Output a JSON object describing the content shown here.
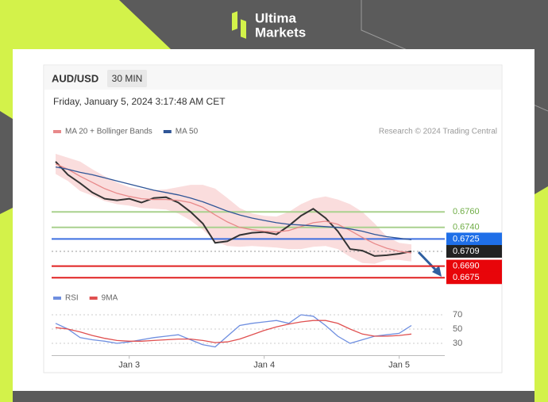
{
  "brand": [
    "Ultima",
    "Markets"
  ],
  "chart_data": [
    {
      "type": "line",
      "title": "AUD/USD",
      "subtitle": "30 MIN",
      "timestamp": "Friday, January 5, 2024 3:17:48 AM CET",
      "credit": "Research © 2024 Trading Central",
      "ylim": [
        0.6665,
        0.6835
      ],
      "series": [
        {
          "name": null,
          "color": "#333333",
          "values": [
            0.6825,
            0.6808,
            0.6797,
            0.6785,
            0.6777,
            0.6775,
            0.6777,
            0.6772,
            0.6778,
            0.6779,
            0.6772,
            0.676,
            0.6745,
            0.672,
            0.6722,
            0.673,
            0.6733,
            0.6734,
            0.6731,
            0.6742,
            0.6755,
            0.6764,
            0.6752,
            0.6735,
            0.6712,
            0.671,
            0.6703,
            0.6704,
            0.6706,
            0.6709
          ]
        },
        {
          "name": "MA 20 + Bollinger Bands",
          "color": "#e8898a",
          "band_color": "#f9d4d4",
          "values": [
            0.6822,
            0.6815,
            0.6806,
            0.6798,
            0.679,
            0.6784,
            0.678,
            0.6777,
            0.6776,
            0.6776,
            0.6775,
            0.6772,
            0.6766,
            0.6756,
            0.6747,
            0.674,
            0.6737,
            0.6735,
            0.6734,
            0.6736,
            0.6741,
            0.6746,
            0.6748,
            0.6744,
            0.6736,
            0.6727,
            0.6719,
            0.6713,
            0.6709,
            0.6707
          ],
          "upper": [
            0.6835,
            0.683,
            0.6825,
            0.6815,
            0.6806,
            0.6798,
            0.6792,
            0.6789,
            0.6788,
            0.6789,
            0.6792,
            0.6795,
            0.6795,
            0.679,
            0.6778,
            0.6765,
            0.6758,
            0.6755,
            0.6754,
            0.676,
            0.677,
            0.6777,
            0.678,
            0.6776,
            0.677,
            0.676,
            0.6745,
            0.6728,
            0.672,
            0.6718
          ],
          "lower": [
            0.6809,
            0.68,
            0.6787,
            0.6781,
            0.6774,
            0.677,
            0.6768,
            0.6765,
            0.6764,
            0.6763,
            0.6758,
            0.6749,
            0.6737,
            0.6722,
            0.6716,
            0.6715,
            0.6716,
            0.6715,
            0.6714,
            0.6712,
            0.6712,
            0.6715,
            0.6716,
            0.6712,
            0.6702,
            0.6694,
            0.6693,
            0.6698,
            0.6698,
            0.6696
          ]
        },
        {
          "name": "MA 50",
          "color": "#2f5597",
          "values": [
            0.6818,
            0.6815,
            0.6811,
            0.6808,
            0.6804,
            0.68,
            0.6796,
            0.6792,
            0.6788,
            0.6785,
            0.6782,
            0.6778,
            0.6773,
            0.6767,
            0.6761,
            0.6756,
            0.6752,
            0.6749,
            0.6746,
            0.6744,
            0.6743,
            0.6742,
            0.6741,
            0.674,
            0.6738,
            0.6735,
            0.6731,
            0.6728,
            0.6726,
            0.6724
          ]
        }
      ],
      "levels": [
        {
          "value": 0.676,
          "label": "0.6760",
          "color": "#a9d18e",
          "text_color": "#70ad47",
          "box": false,
          "style": "solid"
        },
        {
          "value": 0.674,
          "label": "0.6740",
          "color": "#a9d18e",
          "text_color": "#70ad47",
          "box": false,
          "style": "solid"
        },
        {
          "value": 0.6725,
          "label": "0.6725",
          "color": "#3d6fe0",
          "text_color": "#ffffff",
          "box": true,
          "box_color": "#1f6fe8",
          "style": "solid"
        },
        {
          "value": 0.6709,
          "label": "0.6709",
          "color": "#999999",
          "text_color": "#ffffff",
          "box": true,
          "box_color": "#222222",
          "style": "dotted"
        },
        {
          "value": 0.669,
          "label": "0.6690",
          "color": "#e02020",
          "text_color": "#ffffff",
          "box": true,
          "box_color": "#e8050a",
          "style": "solid"
        },
        {
          "value": 0.6675,
          "label": "0.6675",
          "color": "#e02020",
          "text_color": "#ffffff",
          "box": true,
          "box_color": "#e8050a",
          "style": "solid"
        }
      ]
    },
    {
      "type": "line",
      "categories": [
        null,
        null,
        null,
        null,
        null,
        null,
        "Jan 3",
        null,
        null,
        null,
        null,
        null,
        null,
        null,
        null,
        null,
        null,
        "Jan 4",
        null,
        null,
        null,
        null,
        null,
        null,
        null,
        null,
        null,
        null,
        "Jan 5",
        null
      ],
      "ylim": [
        15,
        80
      ],
      "yticks": [
        30,
        50,
        70
      ],
      "series": [
        {
          "name": "RSI",
          "color": "#6f8fe0",
          "values": [
            58,
            50,
            38,
            35,
            33,
            30,
            32,
            35,
            38,
            40,
            42,
            35,
            28,
            25,
            40,
            55,
            58,
            60,
            62,
            58,
            70,
            68,
            55,
            40,
            30,
            35,
            40,
            42,
            44,
            55
          ]
        },
        {
          "name": "9MA",
          "color": "#e05050",
          "values": [
            52,
            50,
            46,
            41,
            37,
            34,
            33,
            33,
            34,
            35,
            36,
            36,
            34,
            31,
            32,
            36,
            42,
            48,
            53,
            57,
            60,
            62,
            62,
            58,
            50,
            43,
            40,
            40,
            41,
            43
          ]
        }
      ]
    }
  ]
}
